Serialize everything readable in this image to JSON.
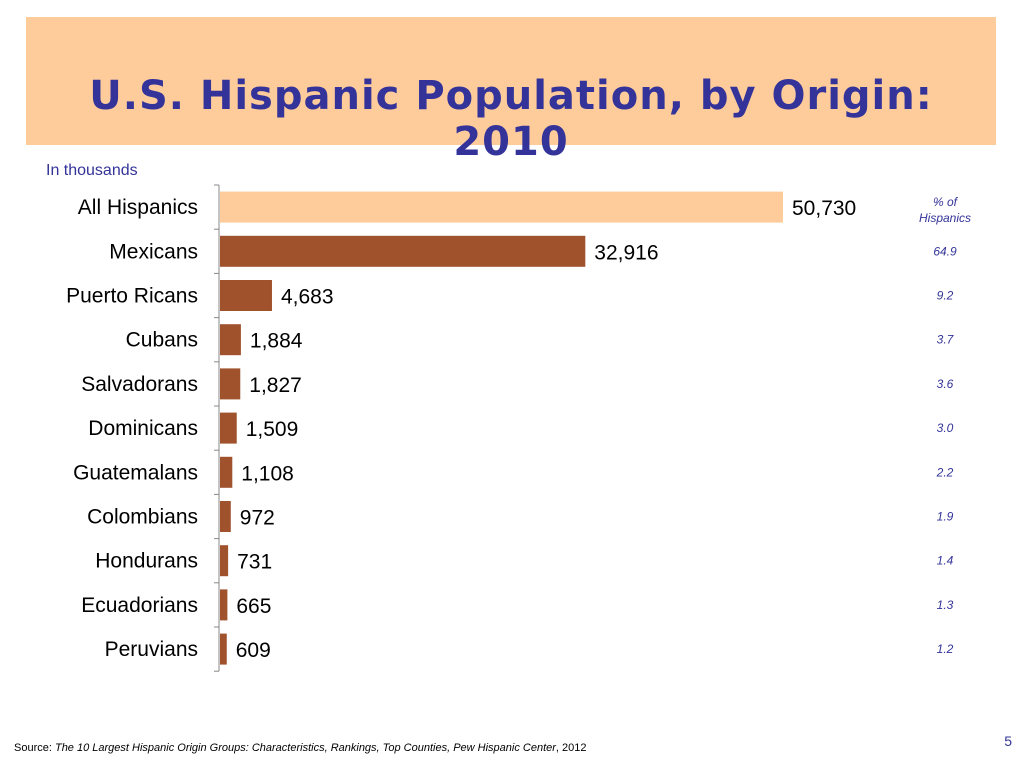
{
  "header": {
    "title": "U.S. Hispanic Population, by Origin: 2010"
  },
  "subtitle": "In thousands",
  "pct_header": {
    "line1": "% of",
    "line2": "Hispanics"
  },
  "colors": {
    "total_bar": "#FECB9A",
    "group_bar": "#A0522D",
    "title": "#333399",
    "title_band": "#FECB9A"
  },
  "chart_data": {
    "type": "bar",
    "orientation": "horizontal",
    "categories": [
      "All Hispanics",
      "Mexicans",
      "Puerto Ricans",
      "Cubans",
      "Salvadorans",
      "Dominicans",
      "Guatemalans",
      "Colombians",
      "Hondurans",
      "Ecuadorians",
      "Peruvians"
    ],
    "values": [
      50730,
      32916,
      4683,
      1884,
      1827,
      1509,
      1108,
      972,
      731,
      665,
      609
    ],
    "value_labels": [
      "50,730",
      "32,916",
      "4,683",
      "1,884",
      "1,827",
      "1,509",
      "1,108",
      "972",
      "731",
      "665",
      "609"
    ],
    "pct_of_hispanics": [
      "",
      "64.9",
      "9.2",
      "3.7",
      "3.6",
      "3.0",
      "2.2",
      "1.9",
      "1.4",
      "1.3",
      "1.2"
    ],
    "unit": "In thousands",
    "grid": false,
    "legend": "none"
  },
  "footer": {
    "source_prefix": "Source: ",
    "source_title": "The 10 Largest Hispanic Origin Groups: Characteristics, Rankings, Top Counties, Pew Hispanic Center",
    "source_suffix": ", 2012",
    "page_number": "5"
  }
}
